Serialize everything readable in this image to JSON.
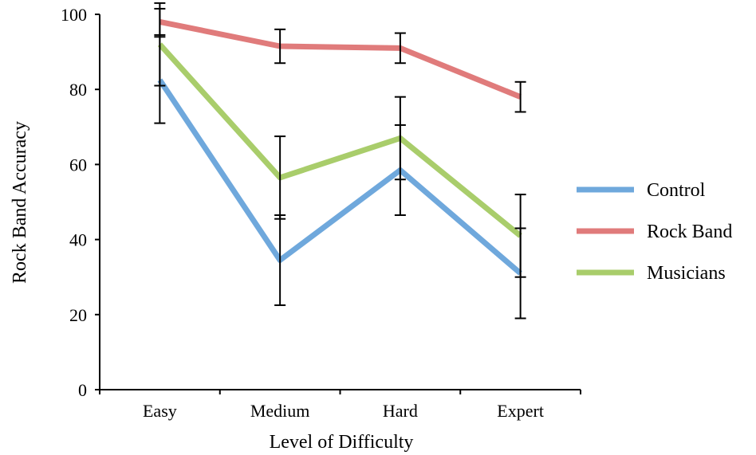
{
  "chart_data": {
    "type": "line",
    "xlabel": "Level of Difficulty",
    "ylabel": "Rock Band Accuracy",
    "categories": [
      "Easy",
      "Medium",
      "Hard",
      "Expert"
    ],
    "ylim": [
      0,
      100
    ],
    "yticks": [
      0,
      20,
      40,
      60,
      80,
      100
    ],
    "grid": false,
    "legend_position": "right",
    "series": [
      {
        "name": "Control",
        "color": "#6fa8dc",
        "values": [
          82.5,
          34.5,
          58.5,
          31
        ],
        "error": [
          11.5,
          12,
          12,
          12
        ]
      },
      {
        "name": "Rock Band",
        "color": "#e07b7b",
        "values": [
          98,
          91.5,
          91,
          78
        ],
        "error": [
          3.5,
          4.5,
          4,
          4
        ]
      },
      {
        "name": "Musicians",
        "color": "#a9cd6b",
        "values": [
          92,
          56.5,
          67,
          41
        ],
        "error": [
          11,
          11,
          11,
          11
        ]
      }
    ]
  }
}
